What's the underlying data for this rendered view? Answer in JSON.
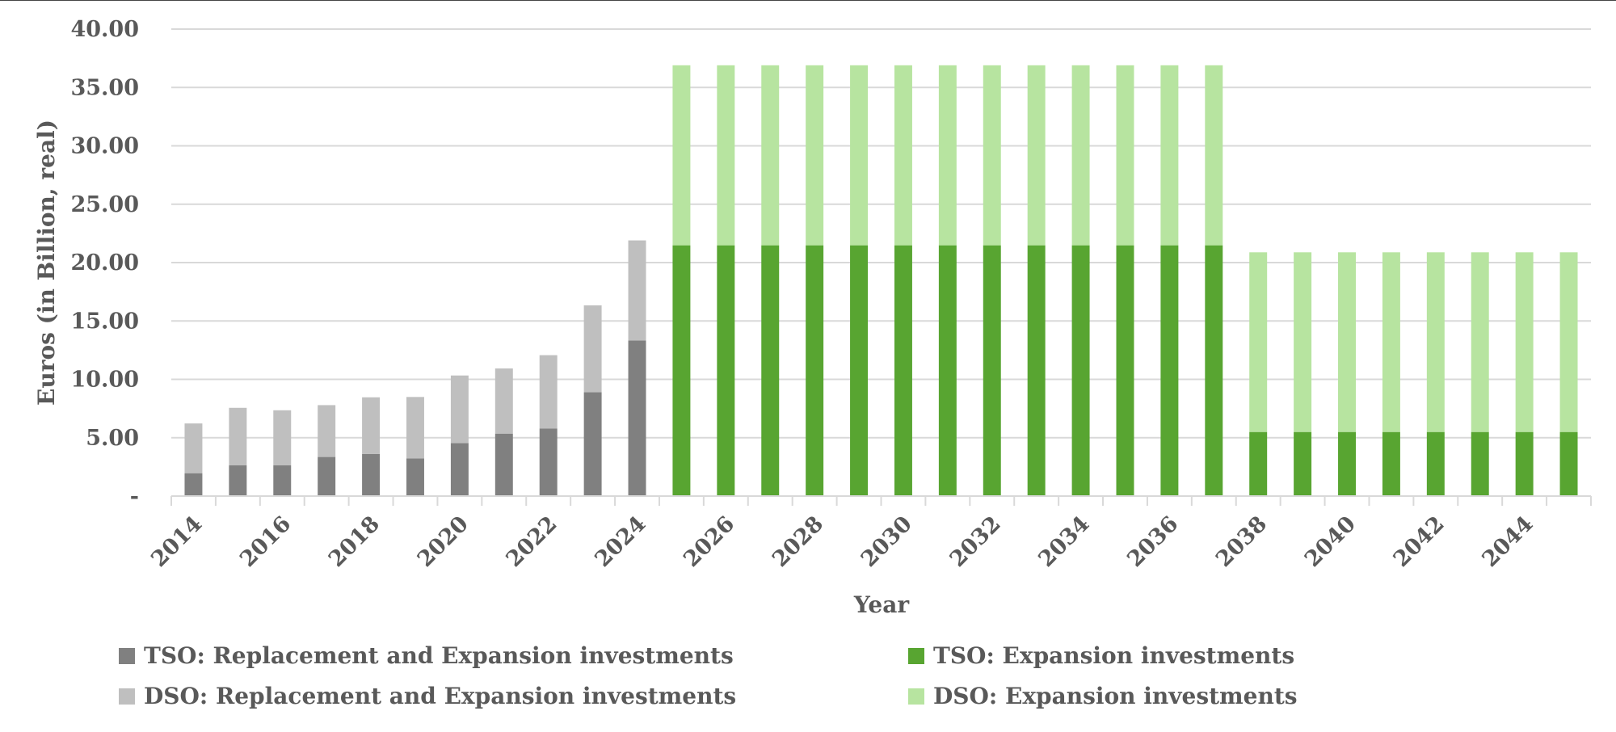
{
  "chart_data": {
    "type": "bar",
    "stacked": true,
    "title": "",
    "xlabel": "Year",
    "ylabel": "Euros (in Billion, real)",
    "ylim": [
      0,
      40
    ],
    "yticks": [
      0,
      5,
      10,
      15,
      20,
      25,
      30,
      35,
      40
    ],
    "ytick_labels": [
      "-",
      "5.00",
      "10.00",
      "15.00",
      "20.00",
      "25.00",
      "30.00",
      "35.00",
      "40.00"
    ],
    "grid": true,
    "legend_position": "bottom",
    "categories": [
      "2014",
      "2015",
      "2016",
      "2017",
      "2018",
      "2019",
      "2020",
      "2021",
      "2022",
      "2023",
      "2024",
      "2025",
      "2026",
      "2027",
      "2028",
      "2029",
      "2030",
      "2031",
      "2032",
      "2033",
      "2034",
      "2035",
      "2036",
      "2037",
      "2038",
      "2039",
      "2040",
      "2041",
      "2042",
      "2043",
      "2044",
      "2045"
    ],
    "xtick_labels": [
      "2014",
      "",
      "2016",
      "",
      "2018",
      "",
      "2020",
      "",
      "2022",
      "",
      "2024",
      "",
      "2026",
      "",
      "2028",
      "",
      "2030",
      "",
      "2032",
      "",
      "2034",
      "",
      "2036",
      "",
      "2038",
      "",
      "2040",
      "",
      "2042",
      "",
      "2044",
      ""
    ],
    "series": [
      {
        "name": "TSO: Replacement and Expansion investments",
        "color": "#808080",
        "values": [
          1.96,
          2.63,
          2.63,
          3.35,
          3.6,
          3.23,
          4.54,
          5.35,
          5.78,
          8.89,
          13.32,
          0,
          0,
          0,
          0,
          0,
          0,
          0,
          0,
          0,
          0,
          0,
          0,
          0,
          0,
          0,
          0,
          0,
          0,
          0,
          0,
          0
        ]
      },
      {
        "name": "DSO: Replacement and Expansion investments",
        "color": "#bfbfbf",
        "values": [
          4.26,
          4.93,
          4.72,
          4.44,
          4.86,
          5.26,
          5.79,
          5.58,
          6.29,
          7.45,
          8.58,
          0,
          0,
          0,
          0,
          0,
          0,
          0,
          0,
          0,
          0,
          0,
          0,
          0,
          0,
          0,
          0,
          0,
          0,
          0,
          0,
          0
        ]
      },
      {
        "name": "TSO: Expansion investments",
        "color": "#58a531",
        "values": [
          0,
          0,
          0,
          0,
          0,
          0,
          0,
          0,
          0,
          0,
          0,
          21.48,
          21.48,
          21.48,
          21.48,
          21.48,
          21.48,
          21.48,
          21.48,
          21.48,
          21.48,
          21.48,
          21.48,
          21.48,
          5.49,
          5.49,
          5.49,
          5.49,
          5.49,
          5.49,
          5.49,
          5.49
        ]
      },
      {
        "name": "DSO: Expansion investments",
        "color": "#b7e4a0",
        "values": [
          0,
          0,
          0,
          0,
          0,
          0,
          0,
          0,
          0,
          0,
          0,
          15.42,
          15.42,
          15.42,
          15.42,
          15.42,
          15.42,
          15.42,
          15.42,
          15.42,
          15.42,
          15.42,
          15.42,
          15.42,
          15.39,
          15.39,
          15.39,
          15.39,
          15.39,
          15.39,
          15.39,
          15.39
        ]
      }
    ]
  },
  "legend": {
    "items": [
      {
        "label": "TSO: Replacement and Expansion investments",
        "color": "#808080"
      },
      {
        "label": "TSO: Expansion investments",
        "color": "#58a531"
      },
      {
        "label": "DSO: Replacement and Expansion investments",
        "color": "#bfbfbf"
      },
      {
        "label": "DSO: Expansion investments",
        "color": "#b7e4a0"
      }
    ]
  },
  "colors": {
    "text": "#595959",
    "grid": "#d9d9d9"
  }
}
